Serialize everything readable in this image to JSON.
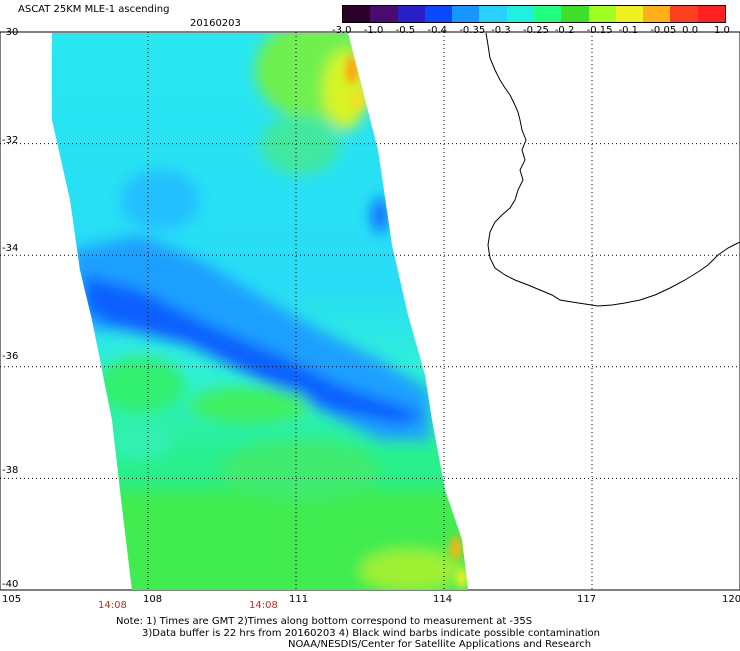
{
  "header": {
    "title": "ASCAT 25KM MLE-1 ascending",
    "date": "20160203"
  },
  "colorbar": {
    "labels": [
      "-3.0",
      "-1.0",
      "-0.5",
      "-0.4",
      "-0.35",
      "-0.3",
      "-0.25",
      "-0.2",
      "-0.15",
      "-0.1",
      "-0.05",
      "0.0",
      "1.0"
    ],
    "colors": [
      "#2a0029",
      "#4b0a6e",
      "#2a1ec8",
      "#0a48ff",
      "#1696ff",
      "#28d2ff",
      "#20f0e0",
      "#20ff80",
      "#40e028",
      "#a0ff20",
      "#f0f020",
      "#ffb018",
      "#ff4020",
      "#ff2020"
    ]
  },
  "axes": {
    "x_ticks": [
      "105",
      "108",
      "111",
      "114",
      "117",
      "120"
    ],
    "y_ticks": [
      "-30",
      "-32",
      "-34",
      "-36",
      "-38",
      "-40"
    ],
    "x_range": [
      105,
      120
    ],
    "y_range": [
      -40,
      -30
    ],
    "grid": true
  },
  "swath_times": [
    "14:08",
    "14:08"
  ],
  "notes": [
    "Note: 1) Times are GMT 2)Times along bottom correspond to measurement at -35S",
    "3)Data buffer is 22 hrs from 20160203 4) Black wind barbs indicate possible contamination",
    "NOAA/NESDIS/Center for Satellite Applications and Research"
  ],
  "colors": {
    "deep_blue": "#0a48ff",
    "blue": "#1696ff",
    "cyan": "#28eaf0",
    "green": "#20f070",
    "yellow_green": "#a0ff20",
    "yellow": "#f0f020",
    "orange": "#ffa018"
  }
}
